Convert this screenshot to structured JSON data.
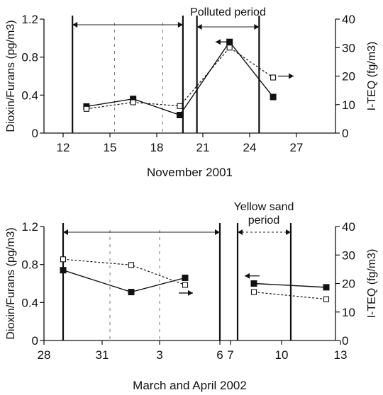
{
  "chart_data": [
    {
      "type": "line",
      "xlabel": "November 2001",
      "ylabel_left": "Dioxin/Furans (pg/m3)",
      "ylabel_right": "I-TEQ (fg/m3)",
      "x_ticks": [
        "12",
        "15",
        "18",
        "21",
        "24",
        "27"
      ],
      "xlim": [
        12,
        27
      ],
      "ylim_left": [
        0,
        1.2
      ],
      "ylim_right": [
        0,
        40
      ],
      "y_ticks_left": [
        "0",
        "0.4",
        "0.8",
        "1.2"
      ],
      "y_ticks_right": [
        "0",
        "10",
        "20",
        "30",
        "40"
      ],
      "period_label": "Polluted period",
      "period_range": [
        20.5,
        24.5
      ],
      "normal_range": [
        12.5,
        19.7
      ],
      "series": [
        {
          "axis": "left",
          "x": [
            13.5,
            16.5,
            19.5,
            22.7,
            25.5
          ],
          "values": [
            0.28,
            0.36,
            0.19,
            0.96,
            0.38
          ]
        },
        {
          "axis": "right",
          "x": [
            13.5,
            16.5,
            19.5,
            22.7,
            25.5
          ],
          "values": [
            8.5,
            10.8,
            9.5,
            30.0,
            19.5
          ]
        }
      ],
      "arrows": [
        {
          "x": 21.8,
          "y_left": 0.96,
          "direction": "left"
        },
        {
          "x": 26.0,
          "y_left": 0.6,
          "direction": "right"
        }
      ]
    },
    {
      "type": "line",
      "xlabel": "March and April 2002",
      "ylabel_left": "Dioxin/Furans (pg/m3)",
      "ylabel_right": "I-TEQ (fg/m3)",
      "x_ticks": [
        "28",
        "31",
        "3",
        "6",
        "7",
        "10",
        "13"
      ],
      "ylim_left": [
        0,
        1.2
      ],
      "ylim_right": [
        0,
        40
      ],
      "y_ticks_left": [
        "0",
        "0.4",
        "0.8",
        "1.2"
      ],
      "y_ticks_right": [
        "0",
        "10",
        "20",
        "30",
        "40"
      ],
      "period_label": "Yellow sand period",
      "series": [
        {
          "axis": "left",
          "x": [
            "29.5 Mar",
            "1.5 Apr",
            "4.5 Apr",
            "8.5 Apr",
            "11.5 Apr"
          ],
          "values": [
            0.74,
            0.51,
            0.66,
            0.6,
            0.56
          ]
        },
        {
          "axis": "right",
          "x": [
            "29.5 Mar",
            "1.5 Apr",
            "4.5 Apr",
            "8.5 Apr",
            "11.5 Apr"
          ],
          "values": [
            28.5,
            26.5,
            19.5,
            17.0,
            14.5
          ]
        }
      ],
      "arrows": [
        {
          "x": "4.8 Apr",
          "y_left": 0.5,
          "direction": "right"
        },
        {
          "x": "7.8 Apr",
          "y_left": 0.68,
          "direction": "left"
        }
      ]
    }
  ]
}
